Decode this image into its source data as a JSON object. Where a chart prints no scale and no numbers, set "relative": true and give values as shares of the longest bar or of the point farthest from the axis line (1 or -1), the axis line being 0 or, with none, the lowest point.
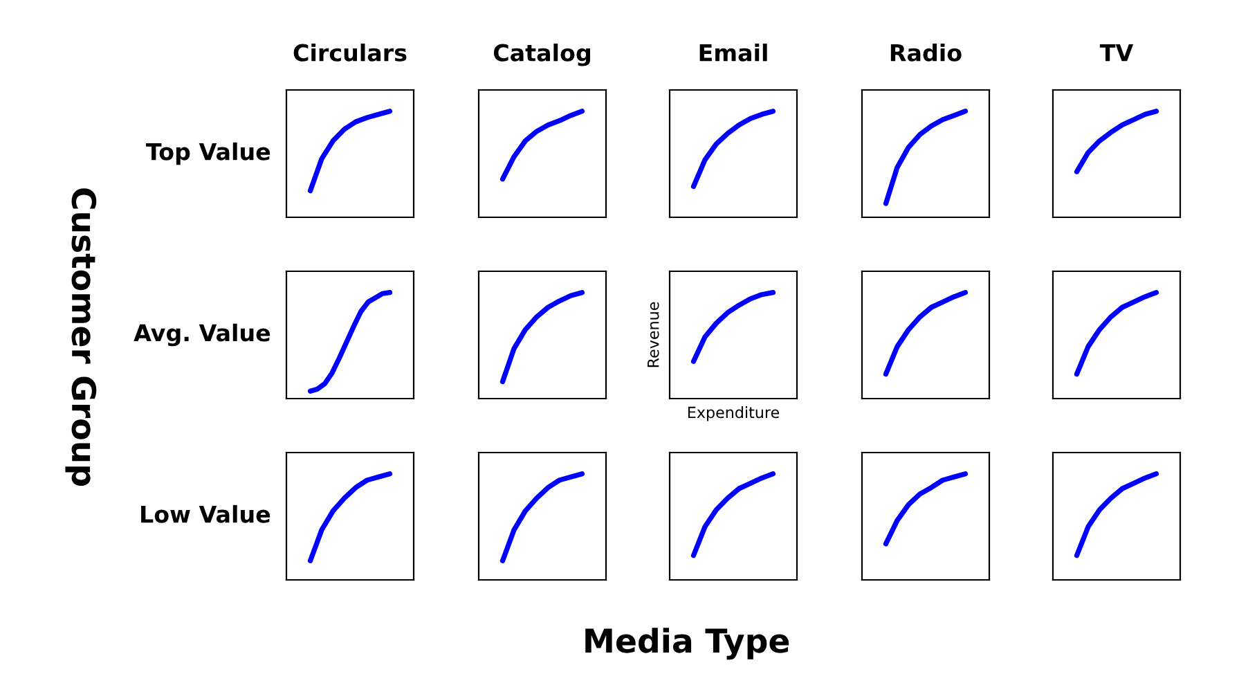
{
  "chart_data": [
    {
      "type": "line",
      "relative": true,
      "title": "Circulars",
      "ylabel": "Top Value",
      "color": "#0000ff",
      "categories": [
        null,
        null,
        null,
        null,
        null,
        null,
        null,
        null
      ],
      "values": [
        0.25,
        0.55,
        0.72,
        0.83,
        0.9,
        0.94,
        0.97,
        1
      ]
    },
    {
      "type": "line",
      "relative": true,
      "title": "Catalog",
      "color": "#0000ff",
      "categories": [
        null,
        null,
        null,
        null,
        null,
        null,
        null,
        null
      ],
      "values": [
        0.36,
        0.57,
        0.72,
        0.81,
        0.87,
        0.91,
        0.96,
        1
      ]
    },
    {
      "type": "line",
      "relative": true,
      "title": "Email",
      "color": "#0000ff",
      "categories": [
        null,
        null,
        null,
        null,
        null,
        null,
        null,
        null
      ],
      "values": [
        0.29,
        0.54,
        0.69,
        0.79,
        0.87,
        0.93,
        0.97,
        1
      ]
    },
    {
      "type": "line",
      "relative": true,
      "title": "Radio",
      "color": "#0000ff",
      "categories": [
        null,
        null,
        null,
        null,
        null,
        null,
        null,
        null
      ],
      "values": [
        0.13,
        0.47,
        0.66,
        0.78,
        0.86,
        0.92,
        0.96,
        1
      ]
    },
    {
      "type": "line",
      "relative": true,
      "title": "TV",
      "color": "#0000ff",
      "categories": [
        null,
        null,
        null,
        null,
        null,
        null,
        null,
        null
      ],
      "values": [
        0.43,
        0.61,
        0.72,
        0.8,
        0.87,
        0.92,
        0.97,
        1
      ]
    },
    {
      "type": "line",
      "relative": true,
      "ylabel": "Avg. Value",
      "color": "#0000ff",
      "categories": [
        null,
        null,
        null,
        null,
        null,
        null,
        null,
        null,
        null,
        null,
        null,
        null
      ],
      "values": [
        0.07,
        0.09,
        0.14,
        0.24,
        0.38,
        0.53,
        0.68,
        0.82,
        0.91,
        0.95,
        0.99,
        1
      ]
    },
    {
      "type": "line",
      "relative": true,
      "color": "#0000ff",
      "categories": [
        null,
        null,
        null,
        null,
        null,
        null,
        null,
        null
      ],
      "values": [
        0.16,
        0.47,
        0.65,
        0.77,
        0.86,
        0.92,
        0.97,
        1
      ]
    },
    {
      "type": "line",
      "relative": true,
      "xlabel": "Expenditure",
      "ylabel": "Revenue",
      "color": "#0000ff",
      "categories": [
        null,
        null,
        null,
        null,
        null,
        null,
        null,
        null
      ],
      "values": [
        0.35,
        0.58,
        0.71,
        0.81,
        0.88,
        0.94,
        0.98,
        1
      ]
    },
    {
      "type": "line",
      "relative": true,
      "color": "#0000ff",
      "categories": [
        null,
        null,
        null,
        null,
        null,
        null,
        null,
        null
      ],
      "values": [
        0.23,
        0.49,
        0.65,
        0.77,
        0.86,
        0.91,
        0.96,
        1
      ]
    },
    {
      "type": "line",
      "relative": true,
      "color": "#0000ff",
      "categories": [
        null,
        null,
        null,
        null,
        null,
        null,
        null,
        null
      ],
      "values": [
        0.23,
        0.49,
        0.65,
        0.77,
        0.86,
        0.91,
        0.96,
        1
      ]
    },
    {
      "type": "line",
      "relative": true,
      "ylabel": "Low Value",
      "color": "#0000ff",
      "categories": [
        null,
        null,
        null,
        null,
        null,
        null,
        null,
        null
      ],
      "values": [
        0.18,
        0.47,
        0.65,
        0.77,
        0.87,
        0.94,
        0.97,
        1
      ]
    },
    {
      "type": "line",
      "relative": true,
      "color": "#0000ff",
      "categories": [
        null,
        null,
        null,
        null,
        null,
        null,
        null,
        null
      ],
      "values": [
        0.18,
        0.47,
        0.65,
        0.77,
        0.87,
        0.94,
        0.97,
        1
      ]
    },
    {
      "type": "line",
      "relative": true,
      "color": "#0000ff",
      "categories": [
        null,
        null,
        null,
        null,
        null,
        null,
        null,
        null
      ],
      "values": [
        0.23,
        0.5,
        0.66,
        0.77,
        0.86,
        0.91,
        0.96,
        1
      ]
    },
    {
      "type": "line",
      "relative": true,
      "color": "#0000ff",
      "categories": [
        null,
        null,
        null,
        null,
        null,
        null,
        null,
        null
      ],
      "values": [
        0.34,
        0.56,
        0.71,
        0.81,
        0.87,
        0.94,
        0.97,
        1
      ]
    },
    {
      "type": "line",
      "relative": true,
      "color": "#0000ff",
      "categories": [
        null,
        null,
        null,
        null,
        null,
        null,
        null,
        null
      ],
      "values": [
        0.23,
        0.5,
        0.66,
        0.77,
        0.86,
        0.91,
        0.96,
        1
      ]
    },
    {
      "type": "other",
      "annotations": [
        "Customer Group"
      ]
    },
    {
      "type": "other",
      "annotations": [
        "Media Type"
      ]
    }
  ]
}
